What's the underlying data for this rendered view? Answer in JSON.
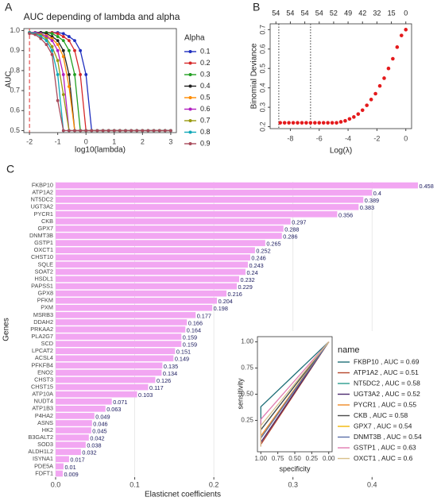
{
  "chart_data": [
    {
      "type": "line",
      "panel": "A",
      "title": "AUC depending of lambda and alpha",
      "x_label": "log10(lambda)",
      "y_label": "AUC",
      "xlim": [
        -2.2,
        3.2
      ],
      "ylim": [
        0.49,
        1.01
      ],
      "xticks": [
        -2,
        -1,
        0,
        1,
        2,
        3
      ],
      "yticks": [
        0.5,
        0.6,
        0.7,
        0.8,
        0.9,
        {
          "value": 1,
          "label": "1.0"
        }
      ],
      "markers": true,
      "legend": "right",
      "legend_title": "Alpha",
      "vlines": [
        -2
      ],
      "vline_color": "#e03030",
      "vline_style": "dashed",
      "x": [
        -2,
        -1.8,
        -1.6,
        -1.4,
        -1.2,
        -1,
        -0.8,
        -0.6,
        -0.4,
        -0.2,
        0,
        0.2,
        0.4,
        0.6,
        0.8,
        1,
        1.2,
        1.4,
        1.6,
        1.8,
        2,
        2.2,
        2.4,
        2.6,
        2.8,
        3
      ],
      "series": [
        {
          "name": "0.1",
          "color": "#1f2fbf",
          "values": [
            0.99,
            0.99,
            0.99,
            0.99,
            0.99,
            0.99,
            0.985,
            0.97,
            0.95,
            0.9,
            0.78,
            0.5,
            0.5,
            0.5,
            0.5,
            0.5,
            0.5,
            0.5,
            0.5,
            0.5,
            0.5,
            0.5,
            0.5,
            0.5,
            0.5,
            0.5
          ]
        },
        {
          "name": "0.2",
          "color": "#d62728",
          "values": [
            0.99,
            0.99,
            0.99,
            0.99,
            0.99,
            0.985,
            0.97,
            0.95,
            0.9,
            0.78,
            0.5,
            0.5,
            0.5,
            0.5,
            0.5,
            0.5,
            0.5,
            0.5,
            0.5,
            0.5,
            0.5,
            0.5,
            0.5,
            0.5,
            0.5,
            0.5
          ]
        },
        {
          "name": "0.3",
          "color": "#22a022",
          "values": [
            0.99,
            0.99,
            0.99,
            0.99,
            0.985,
            0.97,
            0.95,
            0.9,
            0.78,
            0.5,
            0.5,
            0.5,
            0.5,
            0.5,
            0.5,
            0.5,
            0.5,
            0.5,
            0.5,
            0.5,
            0.5,
            0.5,
            0.5,
            0.5,
            0.5,
            0.5
          ]
        },
        {
          "name": "0.4",
          "color": "#222222",
          "values": [
            0.99,
            0.99,
            0.99,
            0.985,
            0.97,
            0.95,
            0.9,
            0.78,
            0.5,
            0.5,
            0.5,
            0.5,
            0.5,
            0.5,
            0.5,
            0.5,
            0.5,
            0.5,
            0.5,
            0.5,
            0.5,
            0.5,
            0.5,
            0.5,
            0.5,
            0.5
          ]
        },
        {
          "name": "0.5",
          "color": "#ff8c00",
          "values": [
            0.99,
            0.99,
            0.98,
            0.975,
            0.96,
            0.93,
            0.87,
            0.72,
            0.5,
            0.5,
            0.5,
            0.5,
            0.5,
            0.5,
            0.5,
            0.5,
            0.5,
            0.5,
            0.5,
            0.5,
            0.5,
            0.5,
            0.5,
            0.5,
            0.5,
            0.5
          ]
        },
        {
          "name": "0.6",
          "color": "#b020c0",
          "values": [
            0.99,
            0.99,
            0.985,
            0.97,
            0.95,
            0.9,
            0.78,
            0.5,
            0.5,
            0.5,
            0.5,
            0.5,
            0.5,
            0.5,
            0.5,
            0.5,
            0.5,
            0.5,
            0.5,
            0.5,
            0.5,
            0.5,
            0.5,
            0.5,
            0.5,
            0.5
          ]
        },
        {
          "name": "0.7",
          "color": "#9a9a10",
          "values": [
            0.99,
            0.985,
            0.98,
            0.96,
            0.92,
            0.85,
            0.68,
            0.5,
            0.5,
            0.5,
            0.5,
            0.5,
            0.5,
            0.5,
            0.5,
            0.5,
            0.5,
            0.5,
            0.5,
            0.5,
            0.5,
            0.5,
            0.5,
            0.5,
            0.5,
            0.5
          ]
        },
        {
          "name": "0.8",
          "color": "#10a8b8",
          "values": [
            0.99,
            0.985,
            0.97,
            0.95,
            0.9,
            0.78,
            0.5,
            0.5,
            0.5,
            0.5,
            0.5,
            0.5,
            0.5,
            0.5,
            0.5,
            0.5,
            0.5,
            0.5,
            0.5,
            0.5,
            0.5,
            0.5,
            0.5,
            0.5,
            0.5,
            0.5
          ]
        },
        {
          "name": "0.9",
          "color": "#a84a5a",
          "values": [
            0.985,
            0.98,
            0.96,
            0.93,
            0.88,
            0.65,
            0.5,
            0.5,
            0.5,
            0.5,
            0.5,
            0.5,
            0.5,
            0.5,
            0.5,
            0.5,
            0.5,
            0.5,
            0.5,
            0.5,
            0.5,
            0.5,
            0.5,
            0.5,
            0.5,
            0.5
          ]
        }
      ]
    },
    {
      "type": "scatter",
      "panel": "B",
      "x_label": "Log(λ)",
      "y_label": "Binomial Deviance",
      "xlim": [
        -9.4,
        0.4
      ],
      "ylim": [
        0.19,
        0.73
      ],
      "xticks": [
        -8,
        -6,
        -4,
        -2,
        0
      ],
      "yticks": [
        0.2,
        0.3,
        0.4,
        0.5,
        0.6,
        0.7
      ],
      "x2ticks": [
        {
          "value": -9,
          "label": "54"
        },
        {
          "value": -8,
          "label": "54"
        },
        {
          "value": -7,
          "label": "54"
        },
        {
          "value": -6,
          "label": "54"
        },
        {
          "value": -5,
          "label": "52"
        },
        {
          "value": -4,
          "label": "49"
        },
        {
          "value": -3,
          "label": "42"
        },
        {
          "value": -2,
          "label": "32"
        },
        {
          "value": -1,
          "label": "15"
        },
        {
          "value": 0,
          "label": "0"
        }
      ],
      "vlines": [
        -8.8,
        -6.6
      ],
      "vline_color": "#333333",
      "vline_style": "dotted",
      "color": "#e41a1c",
      "x": [
        -8.7,
        -8.4,
        -8.1,
        -7.8,
        -7.5,
        -7.2,
        -6.9,
        -6.6,
        -6.3,
        -6.0,
        -5.7,
        -5.4,
        -5.1,
        -4.8,
        -4.5,
        -4.2,
        -3.9,
        -3.6,
        -3.3,
        -3.0,
        -2.7,
        -2.4,
        -2.1,
        -1.8,
        -1.5,
        -1.2,
        -0.9,
        -0.6,
        -0.3,
        0
      ],
      "values": [
        0.22,
        0.22,
        0.22,
        0.22,
        0.22,
        0.22,
        0.22,
        0.22,
        0.22,
        0.22,
        0.22,
        0.22,
        0.22,
        0.22,
        0.225,
        0.23,
        0.24,
        0.25,
        0.265,
        0.285,
        0.31,
        0.34,
        0.37,
        0.41,
        0.45,
        0.5,
        0.55,
        0.61,
        0.67,
        0.7
      ]
    },
    {
      "type": "bar",
      "orientation": "horizontal",
      "panel": "C",
      "x_label": "Elasticnet coefficients",
      "y_label": "Genes",
      "xlim": [
        0,
        0.46
      ],
      "xticks": [
        {
          "value": 0,
          "label": "0.0"
        },
        0.1,
        0.2,
        0.3,
        0.4
      ],
      "grid": true,
      "color": "#f2a6f2",
      "label_color": "#1a1a5e",
      "categories": [
        "FKBP10",
        "ATP1A2",
        "NT5DC2",
        "UGT3A2",
        "PYCR1",
        "CKB",
        "GPX7",
        "DNMT3B",
        "GSTP1",
        "OXCT1",
        "CHST10",
        "SQLE",
        "SOAT2",
        "HSDL1",
        "PAPSS1",
        "GPX8",
        "PFKM",
        "PXM",
        "MSRB3",
        "DDAH2",
        "PRKAA2",
        "PLA2G7",
        "SCD",
        "LPCAT2",
        "ACSL4",
        "PFKFB4",
        "ENO2",
        "CHST3",
        "CHST15",
        "ATP10A",
        "NUDT4",
        "ATP1B3",
        "P4HA2",
        "ASNS",
        "HK2",
        "B3GALT2",
        "SOD3",
        "ALDH1L2",
        "ISYNA1",
        "PDE5A",
        "FDFT1"
      ],
      "values": [
        0.458,
        0.4,
        0.389,
        0.383,
        0.356,
        0.297,
        0.288,
        0.286,
        0.265,
        0.252,
        0.246,
        0.243,
        0.24,
        0.232,
        0.229,
        0.216,
        0.204,
        0.198,
        0.177,
        0.166,
        0.164,
        0.159,
        0.159,
        0.151,
        0.149,
        0.135,
        0.134,
        0.126,
        0.117,
        0.103,
        0.071,
        0.063,
        0.049,
        0.046,
        0.045,
        0.042,
        0.038,
        0.032,
        0.017,
        0.01,
        0.009
      ]
    },
    {
      "type": "line",
      "x_label": "specificity",
      "y_label": "sensitivity",
      "xlim": [
        1.05,
        -0.05
      ],
      "ylim": [
        -0.05,
        1.05
      ],
      "xticks": [
        {
          "value": 1,
          "label": "1.00"
        },
        0.75,
        {
          "value": 0.5,
          "label": "0.50"
        },
        0.25,
        {
          "value": 0,
          "label": "0.00"
        }
      ],
      "yticks": [
        0.25,
        {
          "value": 0.5,
          "label": "0.50"
        },
        0.75,
        {
          "value": 1,
          "label": "1.00"
        }
      ],
      "legend": "right",
      "legend_title": "name",
      "series": [
        {
          "name": "FKBP10 , AUC = 0.69",
          "color": "#1f6f78",
          "x": [
            1,
            1,
            0
          ],
          "values": [
            0,
            0.38,
            1
          ]
        },
        {
          "name": "ATP1A2 , AUC = 0.51",
          "color": "#b5452a",
          "x": [
            1,
            1,
            0
          ],
          "values": [
            0,
            0.02,
            1
          ]
        },
        {
          "name": "NT5DC2 , AUC = 0.58",
          "color": "#2a9d8f",
          "x": [
            1,
            1,
            0
          ],
          "values": [
            0,
            0.16,
            1
          ]
        },
        {
          "name": "UGT3A2 , AUC = 0.52",
          "color": "#4b2a6e",
          "x": [
            1,
            1,
            0
          ],
          "values": [
            0,
            0.04,
            1
          ]
        },
        {
          "name": "PYCR1 , AUC = 0.55",
          "color": "#f08a24",
          "x": [
            1,
            1,
            0
          ],
          "values": [
            0,
            0.1,
            1
          ]
        },
        {
          "name": "CKB , AUC = 0.58",
          "color": "#4a4a4a",
          "x": [
            1,
            1,
            0
          ],
          "values": [
            0,
            0.16,
            1
          ]
        },
        {
          "name": "GPX7 , AUC = 0.54",
          "color": "#f2b705",
          "x": [
            1,
            1,
            0
          ],
          "values": [
            0,
            0.08,
            1
          ]
        },
        {
          "name": "DNMT3B , AUC = 0.54",
          "color": "#5b6fa8",
          "x": [
            1,
            1,
            0
          ],
          "values": [
            0,
            0.08,
            1
          ]
        },
        {
          "name": "GSTP1 , AUC = 0.63",
          "color": "#e07ab0",
          "x": [
            1,
            1,
            0
          ],
          "values": [
            0,
            0.26,
            1
          ]
        },
        {
          "name": "OXCT1 , AUC = 0.6",
          "color": "#d8c08a",
          "x": [
            1,
            1,
            0
          ],
          "values": [
            0,
            0.2,
            1
          ]
        }
      ]
    }
  ]
}
